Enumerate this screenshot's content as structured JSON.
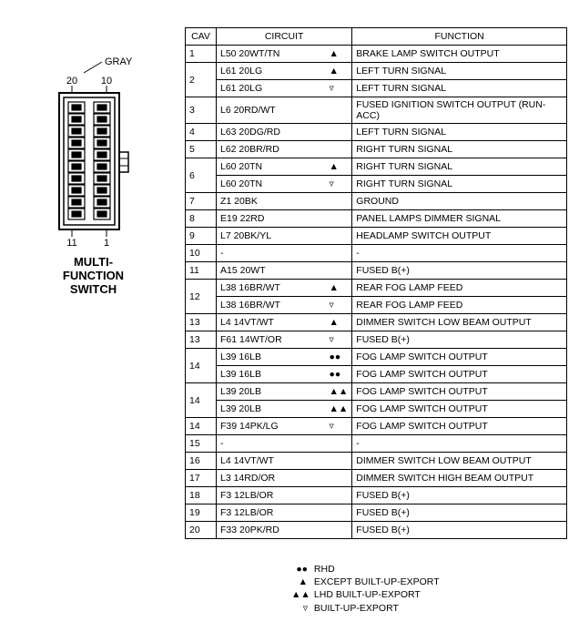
{
  "connector": {
    "color_label": "GRAY",
    "pin_labels": {
      "tl": "20",
      "tr": "10",
      "bl": "11",
      "br": "1"
    },
    "caption_l1": "MULTI-",
    "caption_l2": "FUNCTION",
    "caption_l3": "SWITCH"
  },
  "table": {
    "headers": {
      "cav": "CAV",
      "circuit": "CIRCUIT",
      "function": "FUNCTION"
    },
    "rows": [
      {
        "cav": "1",
        "rowspan": 1,
        "circuit": "L50 20WT/TN",
        "sym": "▲",
        "func": "BRAKE LAMP SWITCH OUTPUT"
      },
      {
        "cav": "2",
        "rowspan": 2,
        "circuit": "L61 20LG",
        "sym": "▲",
        "func": "LEFT TURN SIGNAL"
      },
      {
        "cav": "",
        "rowspan": 0,
        "circuit": "L61 20LG",
        "sym": "▿",
        "func": "LEFT TURN SIGNAL"
      },
      {
        "cav": "3",
        "rowspan": 1,
        "circuit": "L6 20RD/WT",
        "sym": "",
        "func": "FUSED IGNITION SWITCH OUTPUT (RUN-ACC)"
      },
      {
        "cav": "4",
        "rowspan": 1,
        "circuit": "L63 20DG/RD",
        "sym": "",
        "func": "LEFT TURN SIGNAL"
      },
      {
        "cav": "5",
        "rowspan": 1,
        "circuit": "L62 20BR/RD",
        "sym": "",
        "func": "RIGHT TURN SIGNAL"
      },
      {
        "cav": "6",
        "rowspan": 2,
        "circuit": "L60 20TN",
        "sym": "▲",
        "func": "RIGHT TURN SIGNAL"
      },
      {
        "cav": "",
        "rowspan": 0,
        "circuit": "L60 20TN",
        "sym": "▿",
        "func": "RIGHT TURN SIGNAL"
      },
      {
        "cav": "7",
        "rowspan": 1,
        "circuit": "Z1 20BK",
        "sym": "",
        "func": "GROUND"
      },
      {
        "cav": "8",
        "rowspan": 1,
        "circuit": "E19 22RD",
        "sym": "",
        "func": "PANEL LAMPS DIMMER SIGNAL"
      },
      {
        "cav": "9",
        "rowspan": 1,
        "circuit": "L7 20BK/YL",
        "sym": "",
        "func": "HEADLAMP SWITCH OUTPUT"
      },
      {
        "cav": "10",
        "rowspan": 1,
        "circuit": "-",
        "sym": "",
        "func": "-",
        "dash": true
      },
      {
        "cav": "11",
        "rowspan": 1,
        "circuit": "A15 20WT",
        "sym": "",
        "func": "FUSED B(+)"
      },
      {
        "cav": "12",
        "rowspan": 2,
        "circuit": "L38 16BR/WT",
        "sym": "▲",
        "func": "REAR FOG LAMP FEED"
      },
      {
        "cav": "",
        "rowspan": 0,
        "circuit": "L38 16BR/WT",
        "sym": "▿",
        "func": "REAR FOG LAMP FEED"
      },
      {
        "cav": "13",
        "rowspan": 1,
        "circuit": "L4 14VT/WT",
        "sym": "▲",
        "func": "DIMMER SWITCH LOW BEAM OUTPUT"
      },
      {
        "cav": "13",
        "rowspan": 1,
        "circuit": "F61 14WT/OR",
        "sym": "▿",
        "func": "FUSED B(+)"
      },
      {
        "cav": "14",
        "rowspan": 2,
        "circuit": "L39 16LB",
        "sym": "●●",
        "func": "FOG LAMP SWITCH OUTPUT"
      },
      {
        "cav": "",
        "rowspan": 0,
        "circuit": "L39 16LB",
        "sym": "●●",
        "func": "FOG LAMP SWITCH OUTPUT"
      },
      {
        "cav": "14",
        "rowspan": 2,
        "circuit": "L39 20LB",
        "sym": "▲▲",
        "func": "FOG LAMP SWITCH OUTPUT"
      },
      {
        "cav": "",
        "rowspan": 0,
        "circuit": "L39 20LB",
        "sym": "▲▲",
        "func": "FOG LAMP SWITCH OUTPUT"
      },
      {
        "cav": "14",
        "rowspan": 1,
        "circuit": "F39 14PK/LG",
        "sym": "▿",
        "func": "FOG LAMP SWITCH OUTPUT"
      },
      {
        "cav": "15",
        "rowspan": 1,
        "circuit": "-",
        "sym": "",
        "func": "-",
        "dash": true
      },
      {
        "cav": "16",
        "rowspan": 1,
        "circuit": "L4 14VT/WT",
        "sym": "",
        "func": "DIMMER SWITCH LOW BEAM OUTPUT"
      },
      {
        "cav": "17",
        "rowspan": 1,
        "circuit": "L3 14RD/OR",
        "sym": "",
        "func": "DIMMER SWITCH HIGH BEAM OUTPUT"
      },
      {
        "cav": "18",
        "rowspan": 1,
        "circuit": "F3 12LB/OR",
        "sym": "",
        "func": "FUSED B(+)"
      },
      {
        "cav": "19",
        "rowspan": 1,
        "circuit": "F3 12LB/OR",
        "sym": "",
        "func": "FUSED B(+)"
      },
      {
        "cav": "20",
        "rowspan": 1,
        "circuit": "F33 20PK/RD",
        "sym": "",
        "func": "FUSED B(+)"
      }
    ]
  },
  "legend": {
    "items": [
      {
        "sym": "●●",
        "text": "RHD"
      },
      {
        "sym": "▲",
        "text": "EXCEPT BUILT-UP-EXPORT"
      },
      {
        "sym": "▲▲",
        "text": "LHD BUILT-UP-EXPORT"
      },
      {
        "sym": "▿",
        "text": "BUILT-UP-EXPORT"
      }
    ]
  }
}
